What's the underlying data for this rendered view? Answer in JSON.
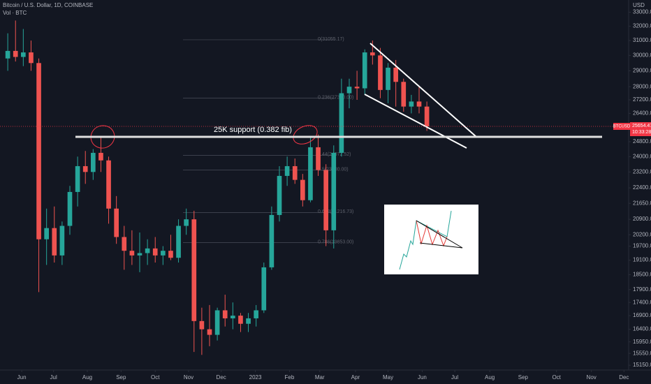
{
  "chart_data": {
    "type": "candlestick",
    "header": {
      "title": "Bitcoin / U.S. Dollar, 1D, COINBASE",
      "volume_label": "Vol · BTC",
      "currency": "USD"
    },
    "open": [
      29800,
      30300,
      29900,
      30200,
      29500,
      20000,
      20500,
      19300,
      20600,
      22200,
      23500,
      23200,
      24200,
      23800,
      21400,
      20100,
      19500,
      19300,
      19400,
      19600,
      19300,
      19500,
      19200,
      20600,
      20900,
      16700,
      16400,
      16200,
      17100,
      16800,
      16900,
      16600,
      16800,
      17100,
      18800,
      21100,
      23000,
      23500,
      22800,
      21800,
      24500,
      23300,
      20400,
      24200,
      27600,
      28000,
      27900,
      30200,
      30000,
      27800,
      29200,
      28300,
      26800,
      27100,
      26800
    ],
    "high": [
      31500,
      32400,
      31800,
      31000,
      29800,
      21400,
      21500,
      20800,
      22500,
      24000,
      24300,
      24400,
      25100,
      24000,
      22000,
      20600,
      20400,
      20300,
      20000,
      20100,
      19700,
      20200,
      20900,
      21400,
      21300,
      17200,
      17300,
      17200,
      17700,
      17400,
      17000,
      17000,
      17300,
      19000,
      21500,
      23500,
      24000,
      23900,
      23100,
      25100,
      25200,
      23600,
      24600,
      28500,
      28500,
      29000,
      30400,
      31000,
      30500,
      29500,
      29700,
      28500,
      27500,
      28000,
      27100
    ],
    "low": [
      29000,
      29600,
      29300,
      29000,
      17800,
      18900,
      19000,
      18900,
      20200,
      21500,
      22600,
      22800,
      23200,
      20700,
      19800,
      18700,
      18900,
      18600,
      18900,
      19000,
      18900,
      19100,
      19000,
      20200,
      15600,
      15500,
      15800,
      16000,
      16500,
      16400,
      16300,
      16300,
      16500,
      17000,
      18700,
      20800,
      22500,
      22600,
      21500,
      21700,
      23000,
      19700,
      19600,
      24000,
      26700,
      27200,
      27500,
      29400,
      27300,
      27000,
      26800,
      26500,
      26400,
      26400,
      25400
    ],
    "close": [
      30300,
      29900,
      30200,
      29500,
      20000,
      20500,
      19300,
      20600,
      22200,
      23500,
      23200,
      24200,
      23800,
      21400,
      20100,
      19500,
      19300,
      19400,
      19600,
      19300,
      19500,
      19200,
      20600,
      20900,
      16700,
      16400,
      16200,
      17100,
      16800,
      16900,
      16600,
      16800,
      17100,
      18800,
      21100,
      23000,
      23500,
      22800,
      21800,
      24500,
      23300,
      20400,
      24200,
      27600,
      28000,
      27900,
      30200,
      30000,
      27800,
      29200,
      28300,
      26800,
      27100,
      26800,
      25654.47
    ],
    "up_color": "#26a69a",
    "down_color": "#ef5350",
    "log_scale": true,
    "xlim": [
      -1,
      80
    ],
    "xticks": [
      {
        "value": 1.8,
        "label": "Jun"
      },
      {
        "value": 5.9,
        "label": "Jul"
      },
      {
        "value": 10.25,
        "label": "Aug"
      },
      {
        "value": 14.6,
        "label": "Sep"
      },
      {
        "value": 19,
        "label": "Oct"
      },
      {
        "value": 23.3,
        "label": "Nov"
      },
      {
        "value": 27.5,
        "label": "Dec"
      },
      {
        "value": 31.9,
        "label": "2023"
      },
      {
        "value": 36.3,
        "label": "Feb"
      },
      {
        "value": 40.2,
        "label": "Mar"
      },
      {
        "value": 44.8,
        "label": "Apr"
      },
      {
        "value": 49,
        "label": "May"
      },
      {
        "value": 53.4,
        "label": "Jun"
      },
      {
        "value": 57.6,
        "label": "Jul"
      },
      {
        "value": 62.1,
        "label": "Aug"
      },
      {
        "value": 66.4,
        "label": "Sep"
      },
      {
        "value": 70.7,
        "label": "Oct"
      },
      {
        "value": 75.2,
        "label": "Nov"
      },
      {
        "value": 79.4,
        "label": "Dec"
      }
    ],
    "ylim": [
      14990,
      33900
    ],
    "yticks": [
      {
        "value": 33000,
        "label": "33000.00"
      },
      {
        "value": 32000,
        "label": "32000.00"
      },
      {
        "value": 31000,
        "label": "31000.00"
      },
      {
        "value": 30000,
        "label": "30000.00"
      },
      {
        "value": 29000,
        "label": "29000.00"
      },
      {
        "value": 28000,
        "label": "28000.00"
      },
      {
        "value": 27200,
        "label": "27200.00"
      },
      {
        "value": 26400,
        "label": "26400.00"
      },
      {
        "value": 24800,
        "label": "24800.00"
      },
      {
        "value": 24000,
        "label": "24000.00"
      },
      {
        "value": 23200,
        "label": "23200.00"
      },
      {
        "value": 22400,
        "label": "22400.00"
      },
      {
        "value": 21650,
        "label": "21650.00"
      },
      {
        "value": 20900,
        "label": "20900.00"
      },
      {
        "value": 20200,
        "label": "20200.00"
      },
      {
        "value": 19700,
        "label": "19700.00"
      },
      {
        "value": 19100,
        "label": "19100.00"
      },
      {
        "value": 18500,
        "label": "18500.00"
      },
      {
        "value": 17900,
        "label": "17900.00"
      },
      {
        "value": 17400,
        "label": "17400.00"
      },
      {
        "value": 16900,
        "label": "16900.00"
      },
      {
        "value": 16400,
        "label": "16400.00"
      },
      {
        "value": 15950,
        "label": "15950.00"
      },
      {
        "value": 15550,
        "label": "15550.00"
      },
      {
        "value": 15150,
        "label": "15150.00"
      }
    ],
    "last_price": {
      "symbol": "BTCUSD",
      "value": 25654.47,
      "countdown": "10:33:28",
      "color": "#f23645"
    },
    "support": {
      "value": 25070,
      "label": "25K support (0.382 fib)",
      "color": "#e0e0e0"
    },
    "fib_levels": [
      {
        "value": 31055.17,
        "label": "0(31055.17)"
      },
      {
        "value": 27300,
        "label": "0.236(27300.00)"
      },
      {
        "value": 24072.52,
        "label": "0.44(24072.52)"
      },
      {
        "value": 23300,
        "label": "0.5(23300.00)"
      },
      {
        "value": 21216.73,
        "label": "0.618(21216.73)"
      },
      {
        "value": 19853,
        "label": "0.786(19853.00)"
      }
    ]
  }
}
